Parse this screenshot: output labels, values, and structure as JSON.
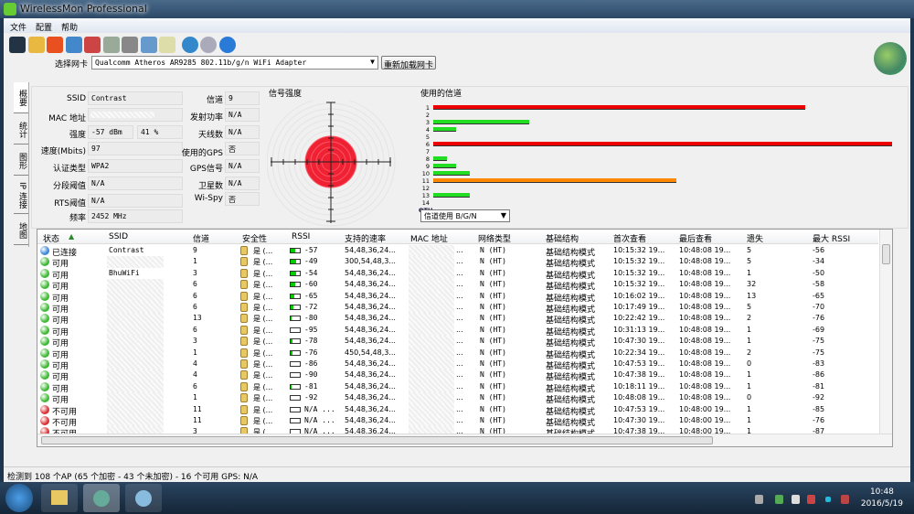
{
  "window": {
    "title": "WirelessMon Professional"
  },
  "menu": [
    "文件",
    "配置",
    "帮助"
  ],
  "toolbar": [
    "save-icon",
    "open-folder-icon",
    "target-icon",
    "connect-icon",
    "disconnect-icon",
    "play-log-icon",
    "stop-log-icon",
    "checklist-icon",
    "clipboard-icon",
    "globe-icon",
    "info-icon",
    "help-icon"
  ],
  "adapter": {
    "label": "选择网卡",
    "value": "Qualcomm Atheros AR9285 802.11b/g/n WiFi Adapter",
    "reload": "重新加载网卡"
  },
  "tabs": [
    "概要",
    "统计",
    "图形",
    "IP 连接",
    "地图"
  ],
  "info": {
    "ssid": {
      "label": "SSID",
      "value": "Contrast"
    },
    "mac": {
      "label": "MAC 地址",
      "value": ""
    },
    "strength": {
      "label": "强度",
      "dbm": "-57 dBm",
      "pct": "41 %"
    },
    "speed": {
      "label": "速度(Mbits)",
      "value": "97"
    },
    "auth": {
      "label": "认证类型",
      "value": "WPA2"
    },
    "frag": {
      "label": "分段阈值",
      "value": "N/A"
    },
    "rts": {
      "label": "RTS阈值",
      "value": "N/A"
    },
    "freq": {
      "label": "频率",
      "value": "2452 MHz"
    },
    "channel": {
      "label": "信道",
      "value": "9"
    },
    "txpower": {
      "label": "发射功率",
      "value": "N/A"
    },
    "antennas": {
      "label": "天线数",
      "value": "N/A"
    },
    "gps_used": {
      "label": "使用的GPS",
      "value": "否"
    },
    "gps_signal": {
      "label": "GPS信号",
      "value": "N/A"
    },
    "satellites": {
      "label": "卫星数",
      "value": "N/A"
    },
    "wispy": {
      "label": "Wi-Spy",
      "value": "否"
    }
  },
  "signal": {
    "title": "信号强度",
    "percent": 41
  },
  "channels": {
    "title": "使用的信道",
    "labels": [
      "1",
      "2",
      "3",
      "4",
      "5",
      "6",
      "7",
      "8",
      "9",
      "10",
      "11",
      "12",
      "13",
      "14",
      "OTH"
    ],
    "usage": [
      0.81,
      0,
      0.21,
      0.05,
      0,
      1.0,
      0,
      0.03,
      0.05,
      0.08,
      0.53,
      0,
      0.08,
      0,
      0
    ],
    "colors": [
      "#ee0000",
      "",
      "#22dd22",
      "#22dd22",
      "",
      "#ee0000",
      "",
      "#22dd22",
      "#22dd22",
      "#22dd22",
      "#ff8800",
      "",
      "#22dd22",
      "",
      ""
    ],
    "select": "信道使用 B/G/N"
  },
  "table": {
    "columns": [
      "状态",
      "SSID",
      "信道",
      "安全性",
      "RSSI",
      "支持的速率",
      "MAC 地址",
      "网络类型",
      "基础结构",
      "首次查看",
      "最后查看",
      "遗失",
      "最大 RSSI"
    ],
    "status_colors": {
      "已连接": "#3a86d8",
      "可用": "#3cb832",
      "不可用": "#d83030"
    },
    "rows": [
      [
        "已连接",
        "Contrast",
        "9",
        "是 (...",
        "-57",
        "54,48,36,24...",
        "N (HT)",
        "基础结构模式",
        "10:15:32 19...",
        "10:48:08 19...",
        "5",
        "-56",
        0.5
      ],
      [
        "可用",
        "",
        "1",
        "是 (...",
        "-49",
        "300,54,48,3...",
        "N (HT)",
        "基础结构模式",
        "10:15:32 19...",
        "10:48:08 19...",
        "5",
        "-34",
        0.6
      ],
      [
        "可用",
        "BhuWiFi",
        "3",
        "是 (...",
        "-54",
        "54,48,36,24...",
        "N (HT)",
        "基础结构模式",
        "10:15:32 19...",
        "10:48:08 19...",
        "1",
        "-50",
        0.55
      ],
      [
        "可用",
        "",
        "6",
        "是 (...",
        "-60",
        "54,48,36,24...",
        "N (HT)",
        "基础结构模式",
        "10:15:32 19...",
        "10:48:08 19...",
        "32",
        "-58",
        0.45
      ],
      [
        "可用",
        "",
        "6",
        "是 (...",
        "-65",
        "54,48,36,24...",
        "N (HT)",
        "基础结构模式",
        "10:16:02 19...",
        "10:48:08 19...",
        "13",
        "-65",
        0.4
      ],
      [
        "可用",
        "",
        "6",
        "是 (...",
        "-72",
        "54,48,36,24...",
        "N (HT)",
        "基础结构模式",
        "10:17:49 19...",
        "10:48:08 19...",
        "5",
        "-70",
        0.3
      ],
      [
        "可用",
        "",
        "13",
        "是 (...",
        "-80",
        "54,48,36,24...",
        "N (HT)",
        "基础结构模式",
        "10:22:42 19...",
        "10:48:08 19...",
        "2",
        "-76",
        0.1
      ],
      [
        "可用",
        "",
        "6",
        "是 (...",
        "-95",
        "54,48,36,24...",
        "N (HT)",
        "基础结构模式",
        "10:31:13 19...",
        "10:48:08 19...",
        "1",
        "-69",
        0
      ],
      [
        "可用",
        "",
        "3",
        "是 (...",
        "-78",
        "54,48,36,24...",
        "N (HT)",
        "基础结构模式",
        "10:47:30 19...",
        "10:48:08 19...",
        "1",
        "-75",
        0.15
      ],
      [
        "可用",
        "",
        "1",
        "是 (...",
        "-76",
        "450,54,48,3...",
        "N (HT)",
        "基础结构模式",
        "10:22:34 19...",
        "10:48:08 19...",
        "2",
        "-75",
        0.15
      ],
      [
        "可用",
        "",
        "4",
        "是 (...",
        "-86",
        "54,48,36,24...",
        "N (HT)",
        "基础结构模式",
        "10:47:53 19...",
        "10:48:08 19...",
        "0",
        "-83",
        0
      ],
      [
        "可用",
        "",
        "4",
        "是 (...",
        "-90",
        "54,48,36,24...",
        "N (HT)",
        "基础结构模式",
        "10:47:38 19...",
        "10:48:08 19...",
        "1",
        "-86",
        0
      ],
      [
        "可用",
        "",
        "6",
        "是 (...",
        "-81",
        "54,48,36,24...",
        "N (HT)",
        "基础结构模式",
        "10:18:11 19...",
        "10:48:08 19...",
        "1",
        "-81",
        0.1
      ],
      [
        "可用",
        "",
        "1",
        "是 (...",
        "-92",
        "54,48,36,24...",
        "N (HT)",
        "基础结构模式",
        "10:48:08 19...",
        "10:48:08 19...",
        "0",
        "-92",
        0
      ],
      [
        "不可用",
        "",
        "11",
        "是 (...",
        "N/A ...",
        "54,48,36,24...",
        "N (HT)",
        "基础结构模式",
        "10:47:53 19...",
        "10:48:00 19...",
        "1",
        "-85",
        0
      ],
      [
        "不可用",
        "",
        "11",
        "是 (...",
        "N/A ...",
        "54,48,36,24...",
        "N (HT)",
        "基础结构模式",
        "10:47:30 19...",
        "10:48:00 19...",
        "1",
        "-76",
        0
      ],
      [
        "不可用",
        "",
        "3",
        "是 (...",
        "N/A ...",
        "54,48,36,24...",
        "N (HT)",
        "基础结构模式",
        "10:47:38 19...",
        "10:48:00 19...",
        "1",
        "-87",
        0
      ]
    ]
  },
  "status_bar": "检测到 108 个AP (65 个加密 - 43 个未加密) - 16 个可用  GPS: N/A",
  "taskbar": {
    "time": "10:48",
    "date": "2016/5/19"
  }
}
